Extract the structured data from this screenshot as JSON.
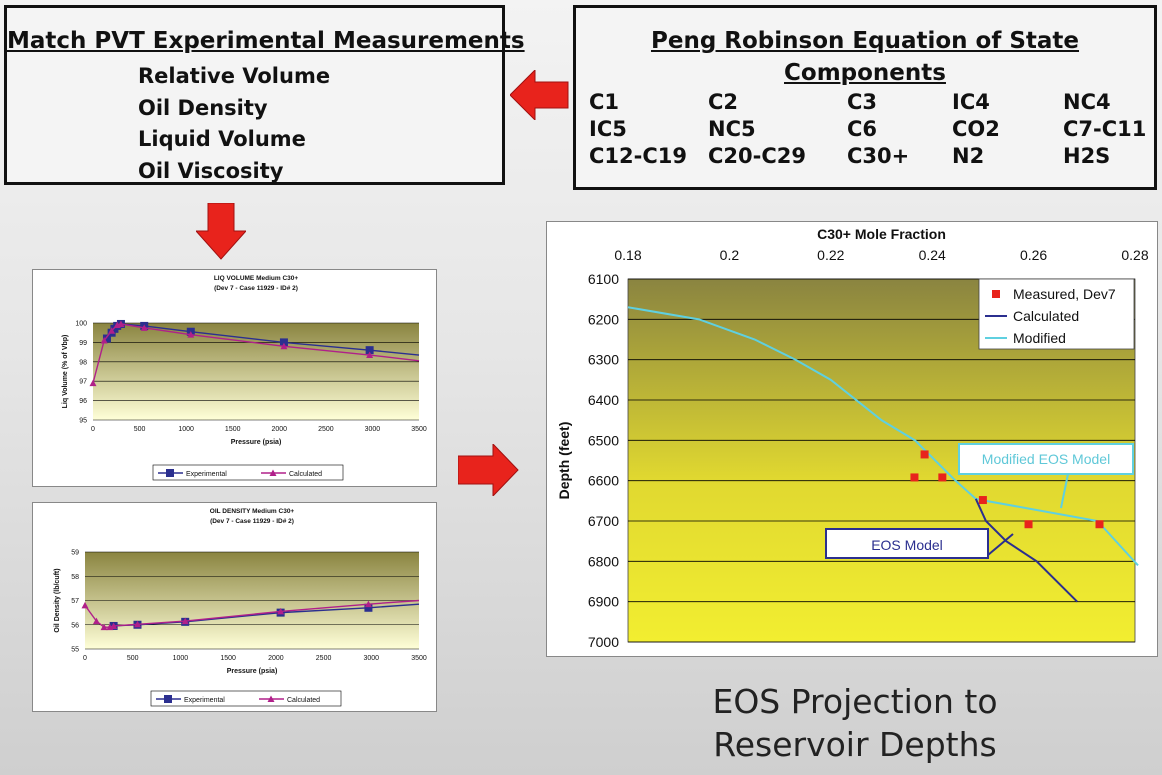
{
  "pvt": {
    "title": "Match PVT Experimental Measurements",
    "items": [
      "Relative Volume",
      "Oil Density",
      "Liquid Volume",
      "Oil Viscosity"
    ]
  },
  "eos": {
    "title_line1": "Peng Robinson Equation of State",
    "title_line2": "Components",
    "components": [
      [
        "C1",
        "C2",
        "C3",
        "IC4",
        "NC4"
      ],
      [
        "IC5",
        "NC5",
        "C6",
        "CO2",
        "C7-C11"
      ],
      [
        "C12-C19",
        "C20-C29",
        "C30+",
        "N2",
        "H2S"
      ]
    ]
  },
  "projection_text": [
    "EOS Projection to",
    "Reservoir Depths"
  ],
  "colors": {
    "arrow_red": "#e8231c",
    "series_blue": "#2b2f8f",
    "series_magenta": "#b0208a",
    "series_cyan": "#5fd0e0",
    "plot_yellow": "#f2ee30",
    "plot_olive": "#8a8440"
  },
  "chart_data": [
    {
      "type": "line",
      "title": "LIQ VOLUME Medium C30+",
      "subtitle": "(Dev 7 - Case 11929 - ID# 2)",
      "xlabel": "Pressure (psia)",
      "ylabel": "Liq Volume (% of Vbp)",
      "xlim": [
        0,
        3500
      ],
      "ylim": [
        95,
        100
      ],
      "xticks": [
        "0",
        "500",
        "1000",
        "1500",
        "2000",
        "2500",
        "3000",
        "3500"
      ],
      "yticks": [
        "95",
        "96",
        "97",
        "98",
        "99",
        "100"
      ],
      "legend": "bottom",
      "series": [
        {
          "name": "Experimental",
          "x": [
            150,
            200,
            230,
            260,
            300,
            550,
            1050,
            2050,
            2970,
            3500
          ],
          "y": [
            99.2,
            99.5,
            99.7,
            99.85,
            99.95,
            99.85,
            99.55,
            99.0,
            98.6,
            98.35
          ]
        },
        {
          "name": "Calculated",
          "x": [
            0,
            120,
            200,
            260,
            300,
            550,
            1050,
            2050,
            2970,
            3500
          ],
          "y": [
            96.9,
            99.1,
            99.6,
            99.9,
            99.95,
            99.75,
            99.4,
            98.8,
            98.35,
            98.05
          ]
        }
      ]
    },
    {
      "type": "line",
      "title": "OIL DENSITY Medium C30+",
      "subtitle": "(Dev 7 - Case 11929 - ID# 2)",
      "xlabel": "Pressure (psia)",
      "ylabel": "Oil Density (lb/cuft)",
      "xlim": [
        0,
        3500
      ],
      "ylim": [
        55,
        59
      ],
      "xticks": [
        "0",
        "500",
        "1000",
        "1500",
        "2000",
        "2500",
        "3000",
        "3500"
      ],
      "yticks": [
        "55",
        "56",
        "57",
        "58",
        "59"
      ],
      "legend": "bottom",
      "series": [
        {
          "name": "Experimental",
          "x": [
            300,
            550,
            1050,
            2050,
            2970,
            3500
          ],
          "y": [
            55.95,
            56.0,
            56.12,
            56.5,
            56.7,
            56.85
          ]
        },
        {
          "name": "Calculated",
          "x": [
            0,
            120,
            200,
            260,
            300,
            550,
            1050,
            2050,
            2970,
            3500
          ],
          "y": [
            56.8,
            56.15,
            55.9,
            55.9,
            55.95,
            56.02,
            56.15,
            56.55,
            56.85,
            57.0
          ]
        }
      ]
    },
    {
      "type": "line",
      "title": "C30+ Mole Fraction",
      "ylabel": "Depth (feet)",
      "xlim": [
        0.18,
        0.28
      ],
      "ylim": [
        6100,
        7000
      ],
      "y_inverted": true,
      "xticks": [
        "0.18",
        "0.2",
        "0.22",
        "0.24",
        "0.26",
        "0.28"
      ],
      "yticks": [
        "6100",
        "6200",
        "6300",
        "6400",
        "6500",
        "6600",
        "6700",
        "6800",
        "6900",
        "7000"
      ],
      "legend": "top-right",
      "annotations": [
        "Modified EOS Model",
        "EOS Model"
      ],
      "series": [
        {
          "name": "Measured, Dev7",
          "mode": "markers",
          "x": [
            0.2385,
            0.2365,
            0.242,
            0.25,
            0.259,
            0.273
          ],
          "y": [
            6535,
            6592,
            6592,
            6648,
            6708,
            6708
          ]
        },
        {
          "name": "Calculated",
          "x": [
            0.2486,
            0.2506,
            0.2546,
            0.2606,
            0.2686
          ],
          "y": [
            6645,
            6700,
            6750,
            6800,
            6900
          ]
        },
        {
          "name": "Modified",
          "x": [
            0.18,
            0.194,
            0.205,
            0.213,
            0.22,
            0.23,
            0.2366,
            0.2446,
            0.2486,
            0.2506,
            0.2726,
            0.2806
          ],
          "y": [
            6170,
            6200,
            6250,
            6300,
            6350,
            6450,
            6500,
            6600,
            6645,
            6650,
            6700,
            6810
          ]
        }
      ]
    }
  ]
}
